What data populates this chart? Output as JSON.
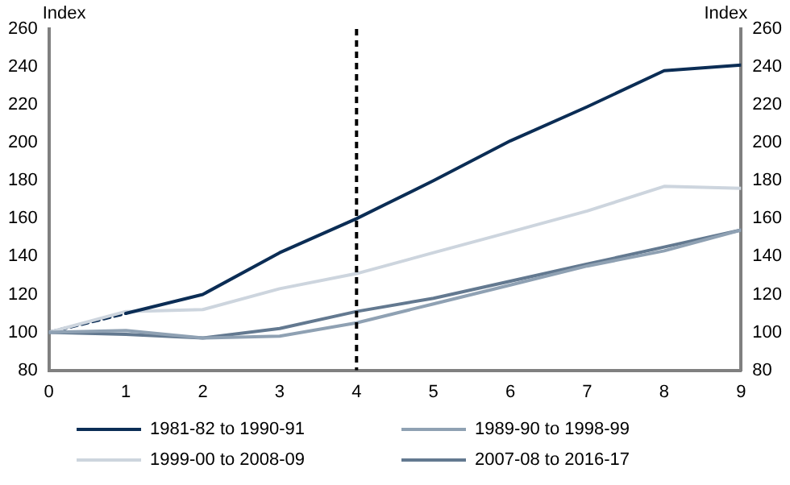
{
  "chart_data": {
    "type": "line",
    "ylabel": "Index",
    "y2label": "Index",
    "x": [
      0,
      1,
      2,
      3,
      4,
      5,
      6,
      7,
      8,
      9
    ],
    "xlim": [
      0,
      9
    ],
    "xticks": [
      0,
      1,
      2,
      3,
      4,
      5,
      6,
      7,
      8,
      9
    ],
    "ylim": [
      80,
      260
    ],
    "yticks": [
      80,
      100,
      120,
      140,
      160,
      180,
      200,
      220,
      240,
      260
    ],
    "y2lim": [
      80,
      260
    ],
    "y2ticks": [
      80,
      100,
      120,
      140,
      160,
      180,
      200,
      220,
      240,
      260
    ],
    "grid": false,
    "legend": "bottom",
    "marker": "none",
    "ref_lines": [
      {
        "axis": "x",
        "value": 4,
        "color": "#000000",
        "line_style": "dashed"
      }
    ],
    "series": [
      {
        "name": "1981-82 to 1990-91",
        "color": "#0b2d55",
        "x": [
          1,
          2,
          3,
          4,
          5,
          6,
          7,
          8,
          9
        ],
        "values": [
          110,
          120,
          142,
          160,
          180,
          201,
          219,
          238,
          241
        ]
      },
      {
        "name": "1989-90 to 1998-99",
        "color": "#8fa1b3",
        "values": [
          100,
          101,
          97,
          98,
          105,
          115,
          125,
          135,
          143,
          154
        ]
      },
      {
        "name": "1999-00 to 2008-09",
        "color": "#cdd5de",
        "values": [
          100,
          111,
          112,
          123,
          131,
          142,
          153,
          164,
          177,
          176
        ]
      },
      {
        "name": "2007-08 to 2016-17",
        "color": "#637990",
        "values": [
          100,
          99,
          97,
          102,
          111,
          118,
          127,
          136,
          145,
          154
        ]
      },
      {
        "color": "#0b2d55",
        "line_style": "dashed",
        "x": [
          0,
          1
        ],
        "values": [
          100,
          110
        ]
      }
    ]
  }
}
